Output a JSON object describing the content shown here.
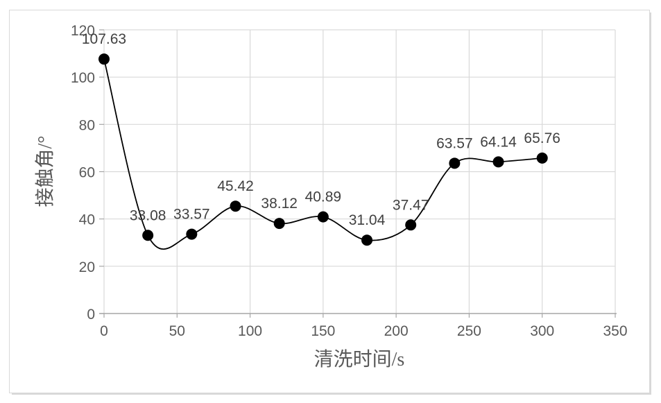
{
  "chart_data": {
    "type": "line",
    "title": "",
    "xlabel": "清洗时间/s",
    "ylabel": "接触角/°",
    "x": [
      0,
      30,
      60,
      90,
      120,
      150,
      180,
      210,
      240,
      270,
      300
    ],
    "values": [
      107.63,
      33.08,
      33.57,
      45.42,
      38.12,
      40.89,
      31.04,
      37.47,
      63.57,
      64.14,
      65.76
    ],
    "data_labels": [
      "107.63",
      "33.08",
      "33.57",
      "45.42",
      "38.12",
      "40.89",
      "31.04",
      "37.47",
      "63.57",
      "64.14",
      "65.76"
    ],
    "x_ticks": [
      0,
      50,
      100,
      150,
      200,
      250,
      300,
      350
    ],
    "y_ticks": [
      0,
      20,
      40,
      60,
      80,
      100,
      120
    ],
    "xlim": [
      0,
      350
    ],
    "ylim": [
      0,
      120
    ],
    "grid": true,
    "legend": "none",
    "smooth_line": true,
    "colors": {
      "line": "#000000",
      "marker": "#000000",
      "gridline": "#d9d9d9",
      "axis_line": "#a6a6a6",
      "tick_label": "#595959",
      "data_label": "#404040",
      "background": "#ffffff",
      "frame_border": "#d9d9d9"
    }
  }
}
